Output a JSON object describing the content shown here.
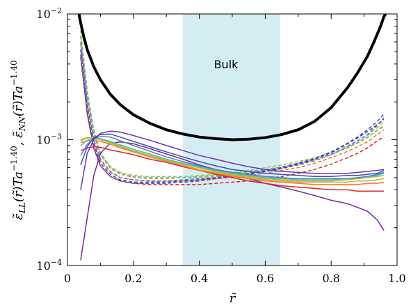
{
  "chart_data": {
    "type": "line",
    "title": "",
    "xlabel": "r̃",
    "ylabel": "ε̃_LL(r̃)Ta^−1.40 , ε̃_NN(r̃)Ta^−1.40",
    "ylabel_parts": {
      "ll_eps": "ε̃",
      "ll_sub": "LL",
      "ll_arg": "(r̃)",
      "ta": "Ta",
      "exp": "−1.40",
      "sep": ", ",
      "nn_eps": "ε̃",
      "nn_sub": "NN",
      "nn_arg": "(r̃)"
    },
    "xlim": [
      0.0,
      1.0
    ],
    "ylim": [
      0.0001,
      0.01
    ],
    "yscale": "log",
    "grid": false,
    "xticks": [
      {
        "value": 0.0,
        "label": "0"
      },
      {
        "value": 0.2,
        "label": "0.2"
      },
      {
        "value": 0.4,
        "label": "0.4"
      },
      {
        "value": 0.6,
        "label": "0.6"
      },
      {
        "value": 0.8,
        "label": "0.8"
      },
      {
        "value": 1.0,
        "label": "1.0"
      }
    ],
    "yticks": [
      {
        "value": 0.0001,
        "label": "10",
        "exp": "−4"
      },
      {
        "value": 0.001,
        "label": "10",
        "exp": "−3"
      },
      {
        "value": 0.01,
        "label": "10",
        "exp": "−2"
      }
    ],
    "band": {
      "x0": 0.35,
      "x1": 0.645,
      "color": "#d4edf2",
      "label": "Bulk"
    },
    "x": [
      0.04,
      0.06,
      0.08,
      0.1,
      0.13,
      0.16,
      0.2,
      0.25,
      0.3,
      0.35,
      0.4,
      0.45,
      0.5,
      0.55,
      0.6,
      0.65,
      0.7,
      0.75,
      0.8,
      0.85,
      0.88,
      0.91,
      0.94,
      0.96
    ],
    "thick_curve": {
      "color": "#000000",
      "x": [
        0.035,
        0.04,
        0.05,
        0.06,
        0.08,
        0.1,
        0.13,
        0.16,
        0.2,
        0.25,
        0.3,
        0.35,
        0.4,
        0.45,
        0.5,
        0.55,
        0.6,
        0.65,
        0.7,
        0.75,
        0.8,
        0.85,
        0.88,
        0.91,
        0.93,
        0.95,
        0.96,
        0.965
      ],
      "values": [
        0.01,
        0.0085,
        0.0065,
        0.0052,
        0.0038,
        0.003,
        0.0023,
        0.0019,
        0.00158,
        0.00135,
        0.0012,
        0.00111,
        0.00105,
        0.00102,
        0.001,
        0.00101,
        0.00104,
        0.0011,
        0.0012,
        0.0014,
        0.0018,
        0.0026,
        0.0034,
        0.0046,
        0.006,
        0.008,
        0.0095,
        0.01
      ]
    },
    "solid_series": [
      {
        "color": "#7b2596",
        "values": [
          0.00011,
          0.00024,
          0.00052,
          0.00078,
          0.00094,
          0.00096,
          0.00093,
          0.00085,
          0.00077,
          0.0007,
          0.00063,
          0.00058,
          0.00053,
          0.00049,
          0.00045,
          0.00042,
          0.00039,
          0.00036,
          0.00033,
          0.00031,
          0.00029,
          0.00027,
          0.00023,
          0.00019
        ]
      },
      {
        "color": "#d62728",
        "values": [
          0.00082,
          0.00086,
          0.00088,
          0.00087,
          0.00083,
          0.0008,
          0.00076,
          0.0007,
          0.00066,
          0.00061,
          0.00057,
          0.00053,
          0.0005,
          0.00047,
          0.00045,
          0.00043,
          0.00042,
          0.00041,
          0.0004,
          0.0004,
          0.00039,
          0.00039,
          0.00039,
          0.00039
        ]
      },
      {
        "color": "#f47a20",
        "values": [
          0.00095,
          0.00098,
          0.00099,
          0.00097,
          0.00092,
          0.00086,
          0.0008,
          0.00073,
          0.00067,
          0.00062,
          0.00057,
          0.00054,
          0.00051,
          0.00049,
          0.00047,
          0.00046,
          0.00045,
          0.00044,
          0.00044,
          0.00044,
          0.00044,
          0.00045,
          0.00045,
          0.00046
        ]
      },
      {
        "color": "#e8a33d",
        "values": [
          0.001,
          0.00104,
          0.00103,
          0.001,
          0.00094,
          0.00088,
          0.00081,
          0.00074,
          0.00068,
          0.00063,
          0.00058,
          0.00055,
          0.00052,
          0.0005,
          0.00048,
          0.00047,
          0.00046,
          0.00046,
          0.00046,
          0.00046,
          0.00047,
          0.00047,
          0.00048,
          0.00049
        ]
      },
      {
        "color": "#9bc53d",
        "values": [
          0.00098,
          0.00103,
          0.00104,
          0.00101,
          0.00095,
          0.00089,
          0.00082,
          0.00075,
          0.00069,
          0.00064,
          0.0006,
          0.00056,
          0.00053,
          0.00051,
          0.00049,
          0.00048,
          0.00047,
          0.00047,
          0.00047,
          0.00048,
          0.00049,
          0.0005,
          0.00051,
          0.00052
        ]
      },
      {
        "color": "#5bb6a8",
        "values": [
          0.0009,
          0.00099,
          0.00103,
          0.00102,
          0.00097,
          0.00091,
          0.00084,
          0.00077,
          0.0007,
          0.00065,
          0.00061,
          0.00057,
          0.00054,
          0.00052,
          0.0005,
          0.00049,
          0.00048,
          0.00048,
          0.00048,
          0.00049,
          0.0005,
          0.00051,
          0.00052,
          0.00054
        ]
      },
      {
        "color": "#4a7fd4",
        "values": [
          0.00075,
          0.00092,
          0.00102,
          0.00106,
          0.00105,
          0.00098,
          0.0009,
          0.00081,
          0.00073,
          0.00067,
          0.00062,
          0.00058,
          0.00055,
          0.00053,
          0.00051,
          0.0005,
          0.00049,
          0.00049,
          0.00049,
          0.00049,
          0.0005,
          0.00051,
          0.00053,
          0.00055
        ]
      },
      {
        "color": "#3b4fc2",
        "values": [
          0.00063,
          0.00088,
          0.00104,
          0.0011,
          0.00111,
          0.00105,
          0.00097,
          0.00088,
          0.0008,
          0.00073,
          0.00067,
          0.00062,
          0.00058,
          0.00056,
          0.00054,
          0.00053,
          0.00052,
          0.00051,
          0.00051,
          0.00052,
          0.00052,
          0.00053,
          0.00054,
          0.00057
        ]
      },
      {
        "color": "#6a32b8",
        "values": [
          0.0004,
          0.00078,
          0.001,
          0.00112,
          0.00117,
          0.00115,
          0.00108,
          0.00099,
          0.0009,
          0.00082,
          0.00075,
          0.0007,
          0.00065,
          0.00061,
          0.00058,
          0.00056,
          0.00055,
          0.00054,
          0.00054,
          0.00054,
          0.00055,
          0.00056,
          0.00057,
          0.00058
        ]
      }
    ],
    "dashed_series": [
      {
        "color": "#d62728",
        "values": [
          0.0048,
          0.0016,
          0.00085,
          0.00062,
          0.00051,
          0.00047,
          0.00045,
          0.00044,
          0.00044,
          0.00044,
          0.00044,
          0.00045,
          0.00046,
          0.00047,
          0.00049,
          0.00051,
          0.00054,
          0.00058,
          0.00064,
          0.00072,
          0.00078,
          0.00086,
          0.00098,
          0.00105
        ]
      },
      {
        "color": "#f47a20",
        "values": [
          0.0058,
          0.0019,
          0.00095,
          0.00068,
          0.00055,
          0.0005,
          0.00048,
          0.00047,
          0.00047,
          0.00047,
          0.00048,
          0.00049,
          0.0005,
          0.00052,
          0.00054,
          0.00057,
          0.0006,
          0.00065,
          0.00072,
          0.00081,
          0.00088,
          0.00096,
          0.0011,
          0.0012
        ]
      },
      {
        "color": "#e8a33d",
        "values": [
          0.0066,
          0.0022,
          0.0011,
          0.00075,
          0.00059,
          0.00053,
          0.0005,
          0.00049,
          0.00049,
          0.0005,
          0.0005,
          0.00051,
          0.00053,
          0.00055,
          0.00057,
          0.0006,
          0.00064,
          0.00069,
          0.00076,
          0.00086,
          0.00094,
          0.00104,
          0.0012,
          0.0013
        ]
      },
      {
        "color": "#9bc53d",
        "values": [
          0.0074,
          0.0025,
          0.0012,
          0.00079,
          0.00061,
          0.00055,
          0.00052,
          0.00051,
          0.00051,
          0.00051,
          0.00052,
          0.00053,
          0.00055,
          0.00057,
          0.0006,
          0.00063,
          0.00067,
          0.00072,
          0.00079,
          0.0009,
          0.00098,
          0.00108,
          0.00125,
          0.0014
        ]
      },
      {
        "color": "#5bb6a8",
        "values": [
          0.0068,
          0.0023,
          0.00115,
          0.00077,
          0.0006,
          0.00054,
          0.00051,
          0.0005,
          0.0005,
          0.0005,
          0.00051,
          0.00052,
          0.00054,
          0.00056,
          0.00058,
          0.00061,
          0.00065,
          0.0007,
          0.00077,
          0.00087,
          0.00095,
          0.00105,
          0.00118,
          0.00128
        ]
      },
      {
        "color": "#4a7fd4",
        "values": [
          0.006,
          0.002,
          0.001,
          0.0007,
          0.00056,
          0.0005,
          0.00048,
          0.00047,
          0.00047,
          0.00048,
          0.00049,
          0.0005,
          0.00052,
          0.00054,
          0.00056,
          0.00059,
          0.00063,
          0.00068,
          0.00076,
          0.00088,
          0.00098,
          0.0011,
          0.0013,
          0.0015
        ]
      },
      {
        "color": "#3b4fc2",
        "values": [
          0.0052,
          0.0018,
          0.00092,
          0.00065,
          0.00053,
          0.00048,
          0.00046,
          0.00046,
          0.00046,
          0.00047,
          0.00048,
          0.0005,
          0.00052,
          0.00054,
          0.00057,
          0.0006,
          0.00065,
          0.00071,
          0.0008,
          0.00094,
          0.00105,
          0.0012,
          0.0014,
          0.0016
        ]
      },
      {
        "color": "#6a32b8",
        "values": [
          0.0045,
          0.0016,
          0.00086,
          0.00062,
          0.00051,
          0.00047,
          0.00045,
          0.00045,
          0.00045,
          0.00046,
          0.00047,
          0.00049,
          0.00051,
          0.00053,
          0.00056,
          0.00059,
          0.00064,
          0.0007,
          0.00079,
          0.00093,
          0.00103,
          0.00116,
          0.00132,
          0.00145
        ]
      }
    ]
  }
}
